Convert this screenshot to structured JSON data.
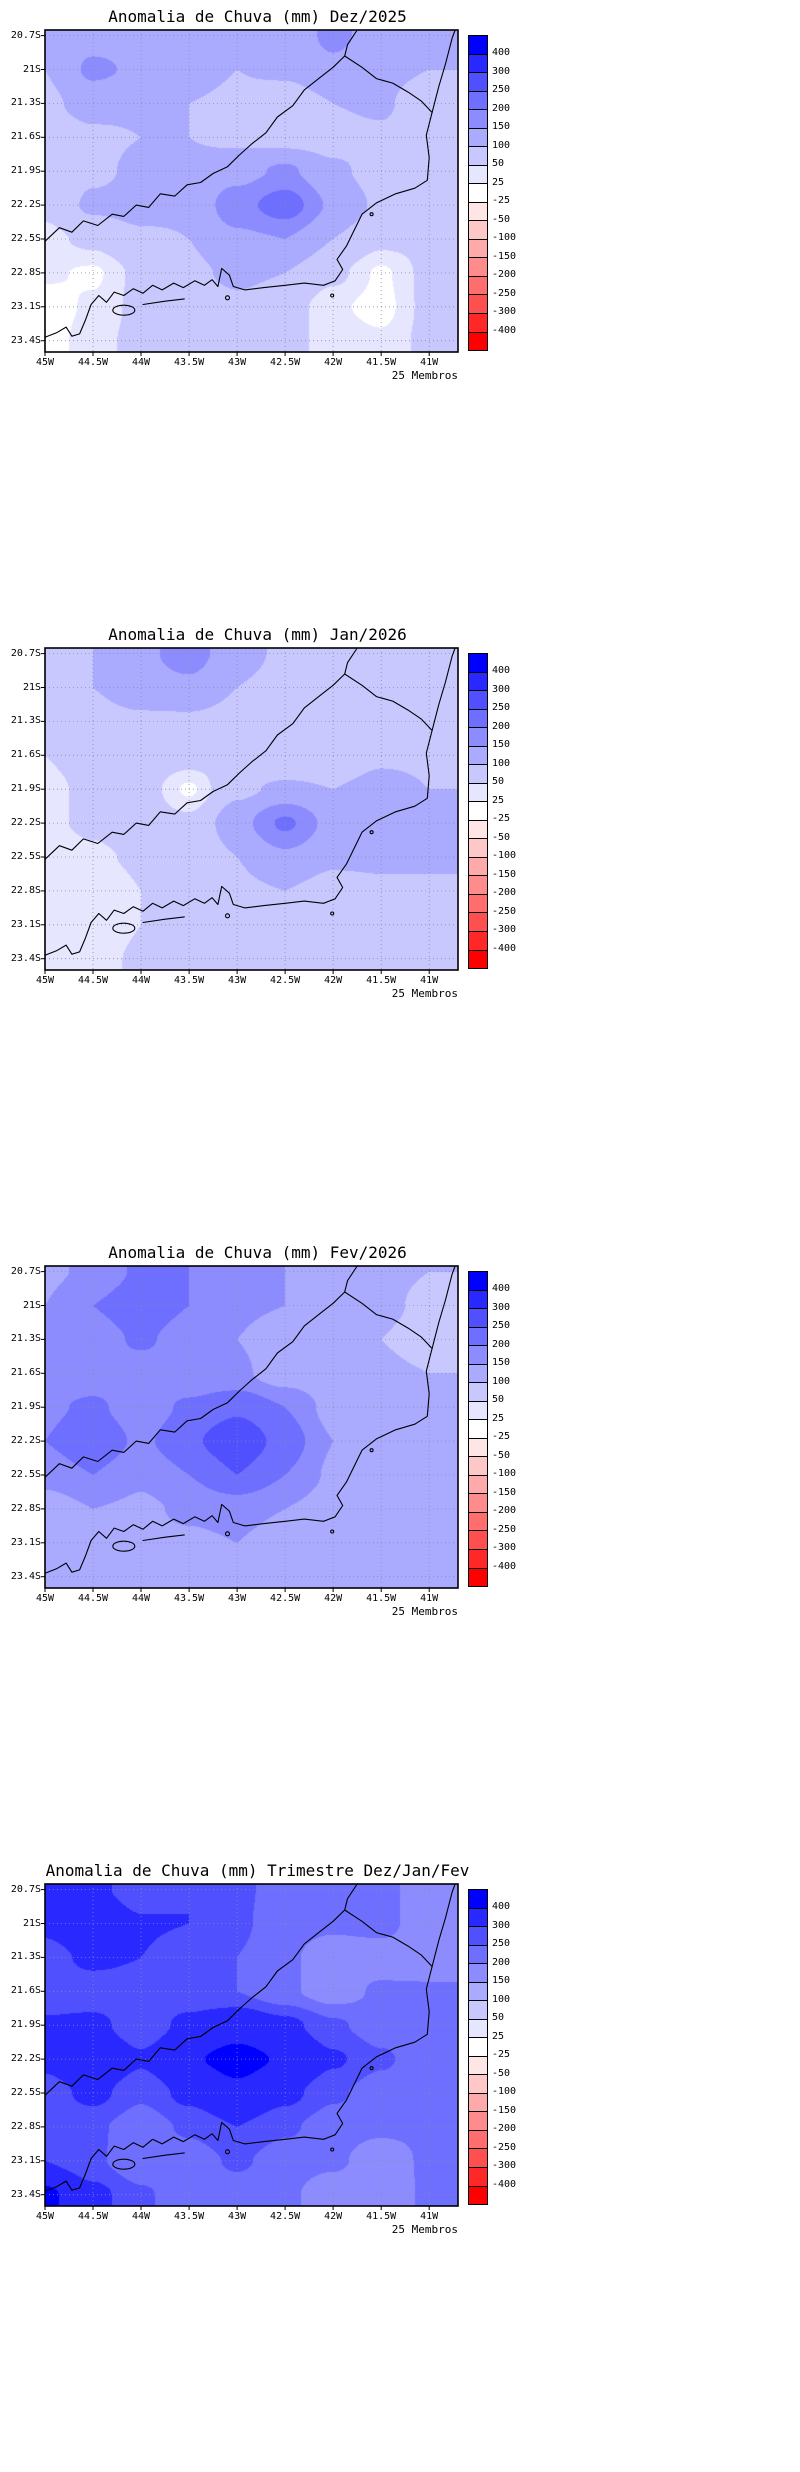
{
  "axes": {
    "lat_ticks": [
      "20.7S",
      "21S",
      "21.3S",
      "21.6S",
      "21.9S",
      "22.2S",
      "22.5S",
      "22.8S",
      "23.1S",
      "23.4S"
    ],
    "lon_ticks": [
      "45W",
      "44.5W",
      "44W",
      "43.5W",
      "43W",
      "42.5W",
      "42W",
      "41.5W",
      "41W"
    ]
  },
  "colorbar": {
    "tick_labels": [
      "400",
      "300",
      "250",
      "200",
      "150",
      "100",
      "50",
      "25",
      "-25",
      "-50",
      "-100",
      "-150",
      "-200",
      "-250",
      "-300",
      "-400"
    ],
    "segment_colors_top_to_bottom": [
      "#0000ff",
      "#2828ff",
      "#5050ff",
      "#6e6eff",
      "#8c8cff",
      "#aaaaff",
      "#c8c8ff",
      "#e6e6ff",
      "#ffffff",
      "#ffe6e6",
      "#ffc8c8",
      "#ffaaaa",
      "#ff8c8c",
      "#ff6e6e",
      "#ff5050",
      "#ff2828",
      "#ff0000"
    ]
  },
  "panels": [
    {
      "title": "Anomalia de Chuva (mm) Dez/2025",
      "members_label": "25 Membros"
    },
    {
      "title": "Anomalia de Chuva (mm) Jan/2026",
      "members_label": "25 Membros"
    },
    {
      "title": "Anomalia de Chuva (mm) Fev/2026",
      "members_label": "25 Membros"
    },
    {
      "title": "Anomalia de Chuva (mm) Trimestre Dez/Jan/Fev",
      "members_label": "25 Membros"
    }
  ],
  "chart_data": {
    "type": "heatmap",
    "units": "mm",
    "title": "Anomalia de Chuva (mm)",
    "levels": [
      -400,
      -300,
      -250,
      -200,
      -150,
      -100,
      -50,
      -25,
      25,
      50,
      100,
      150,
      200,
      250,
      300,
      400
    ],
    "lat": [
      -20.7,
      -21.0,
      -21.3,
      -21.6,
      -21.9,
      -22.2,
      -22.5,
      -22.8,
      -23.1,
      -23.4
    ],
    "lon": [
      -45.0,
      -44.5,
      -44.0,
      -43.5,
      -43.0,
      -42.5,
      -42.0,
      -41.5,
      -41.0
    ],
    "panels": [
      {
        "title": "Anomalia de Chuva (mm) Dez/2025",
        "values": [
          [
            110,
            130,
            130,
            120,
            110,
            120,
            160,
            130,
            110
          ],
          [
            100,
            160,
            140,
            120,
            100,
            110,
            140,
            120,
            100
          ],
          [
            90,
            120,
            110,
            100,
            90,
            70,
            100,
            110,
            60
          ],
          [
            70,
            90,
            100,
            100,
            90,
            80,
            80,
            90,
            60
          ],
          [
            60,
            90,
            110,
            110,
            130,
            160,
            110,
            80,
            70
          ],
          [
            60,
            110,
            120,
            110,
            180,
            230,
            140,
            90,
            70
          ],
          [
            40,
            60,
            90,
            100,
            140,
            150,
            100,
            60,
            60
          ],
          [
            30,
            20,
            60,
            90,
            110,
            100,
            60,
            20,
            60
          ],
          [
            10,
            30,
            60,
            70,
            90,
            70,
            30,
            15,
            60
          ],
          [
            10,
            40,
            60,
            60,
            70,
            60,
            40,
            30,
            60
          ]
        ]
      },
      {
        "title": "Anomalia de Chuva (mm) Jan/2026",
        "values": [
          [
            90,
            100,
            140,
            170,
            120,
            90,
            90,
            100,
            90
          ],
          [
            80,
            100,
            130,
            140,
            100,
            80,
            80,
            100,
            90
          ],
          [
            60,
            80,
            90,
            90,
            80,
            60,
            60,
            90,
            90
          ],
          [
            50,
            60,
            80,
            70,
            60,
            55,
            60,
            90,
            90
          ],
          [
            45,
            55,
            70,
            20,
            90,
            110,
            100,
            120,
            100
          ],
          [
            45,
            55,
            70,
            60,
            130,
            210,
            130,
            130,
            100
          ],
          [
            35,
            45,
            55,
            60,
            100,
            140,
            110,
            110,
            100
          ],
          [
            30,
            30,
            50,
            60,
            90,
            100,
            80,
            90,
            100
          ],
          [
            30,
            30,
            50,
            55,
            70,
            70,
            70,
            80,
            100
          ],
          [
            35,
            40,
            55,
            55,
            60,
            60,
            60,
            80,
            100
          ]
        ]
      },
      {
        "title": "Anomalia de Chuva (mm) Fev/2026",
        "values": [
          [
            140,
            160,
            210,
            200,
            160,
            150,
            140,
            110,
            100
          ],
          [
            150,
            200,
            240,
            200,
            160,
            150,
            140,
            110,
            90
          ],
          [
            150,
            170,
            210,
            170,
            150,
            120,
            110,
            100,
            80
          ],
          [
            160,
            170,
            170,
            160,
            160,
            120,
            110,
            110,
            100
          ],
          [
            190,
            210,
            170,
            210,
            240,
            200,
            130,
            110,
            110
          ],
          [
            200,
            240,
            190,
            240,
            290,
            230,
            150,
            110,
            110
          ],
          [
            170,
            200,
            160,
            200,
            250,
            200,
            140,
            110,
            110
          ],
          [
            120,
            150,
            140,
            160,
            170,
            150,
            120,
            110,
            110
          ],
          [
            110,
            110,
            130,
            140,
            150,
            120,
            110,
            100,
            110
          ],
          [
            100,
            110,
            130,
            110,
            110,
            110,
            100,
            100,
            110
          ]
        ]
      },
      {
        "title": "Anomalia de Chuva (mm) Trimestre Dez/Jan/Fev",
        "values": [
          [
            310,
            320,
            260,
            300,
            260,
            230,
            210,
            220,
            160
          ],
          [
            320,
            380,
            310,
            300,
            260,
            220,
            210,
            220,
            160
          ],
          [
            270,
            320,
            300,
            260,
            250,
            210,
            170,
            170,
            160
          ],
          [
            260,
            260,
            260,
            260,
            250,
            210,
            170,
            210,
            210
          ],
          [
            310,
            320,
            260,
            320,
            360,
            320,
            260,
            220,
            210
          ],
          [
            320,
            380,
            310,
            390,
            430,
            390,
            310,
            260,
            210
          ],
          [
            270,
            320,
            260,
            320,
            380,
            320,
            260,
            220,
            210
          ],
          [
            260,
            260,
            220,
            260,
            300,
            260,
            220,
            210,
            210
          ],
          [
            300,
            260,
            210,
            220,
            260,
            220,
            210,
            170,
            210
          ],
          [
            420,
            320,
            260,
            210,
            220,
            210,
            170,
            160,
            210
          ]
        ]
      }
    ]
  }
}
